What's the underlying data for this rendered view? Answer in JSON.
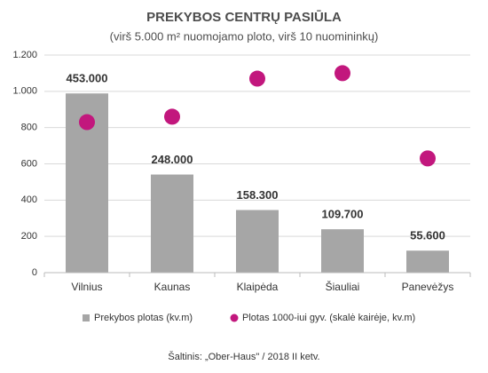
{
  "chart_data": {
    "type": "bar",
    "title": "PREKYBOS CENTRŲ PASIŪLA",
    "subtitle": "(virš 5.000 m² nuomojamo ploto, virš 10 nuomininkų)",
    "categories": [
      "Vilnius",
      "Kaunas",
      "Klaipėda",
      "Šiauliai",
      "Panevėžys"
    ],
    "series": [
      {
        "name": "Prekybos plotas (kv.m)",
        "type": "bar",
        "axis": "y2",
        "color": "#a6a6a6",
        "values": [
          453000,
          248000,
          158300,
          109700,
          55600
        ],
        "value_labels": [
          "453.000",
          "248.000",
          "158.300",
          "109.700",
          "55.600"
        ]
      },
      {
        "name": "Plotas 1000-iui gyv. (skalė kairėje, kv.m)",
        "type": "scatter",
        "color": "#c2177d",
        "values": [
          830,
          860,
          1070,
          1100,
          630
        ]
      }
    ],
    "ylim": [
      0,
      1200
    ],
    "yticks": [
      0,
      200,
      400,
      600,
      800,
      {
        "value": 1000,
        "label": "1.000"
      },
      {
        "value": 1200,
        "label": "1.200"
      }
    ],
    "y2lim": [
      0,
      550000
    ],
    "grid": true,
    "legend": "bottom",
    "source": "Šaltinis:  „Ober-Haus\"  / 2018 II ketv."
  }
}
